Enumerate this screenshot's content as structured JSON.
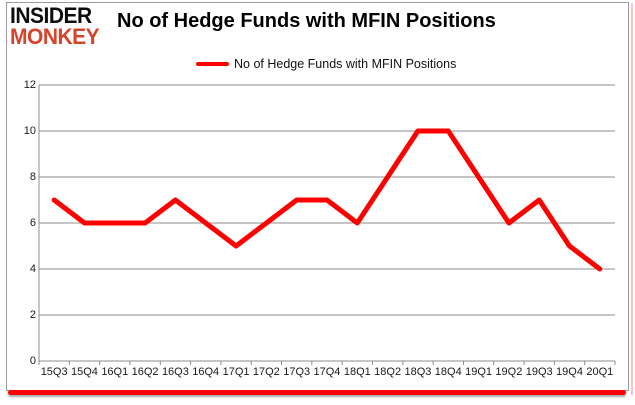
{
  "brand": {
    "line1": "INSIDER",
    "line2": "MONKEY",
    "accent_color": "#d7432b"
  },
  "header": {
    "title": "No of Hedge Funds with MFIN Positions"
  },
  "legend": {
    "label": "No of Hedge Funds with MFIN Positions",
    "swatch_color": "#fe0000"
  },
  "chart_data": {
    "type": "line",
    "title": "No of Hedge Funds with MFIN Positions",
    "legend_entries": [
      "No of Hedge Funds with MFIN Positions"
    ],
    "legend_position": "top",
    "categories": [
      "15Q3",
      "15Q4",
      "16Q1",
      "16Q2",
      "16Q3",
      "16Q4",
      "17Q1",
      "17Q2",
      "17Q3",
      "17Q4",
      "18Q1",
      "18Q2",
      "18Q3",
      "18Q4",
      "19Q1",
      "19Q2",
      "19Q3",
      "19Q4",
      "20Q1"
    ],
    "values": [
      7,
      6,
      6,
      6,
      7,
      6,
      5,
      6,
      7,
      7,
      6,
      8,
      10,
      10,
      8,
      6,
      7,
      5,
      4
    ],
    "xlabel": "",
    "ylabel": "",
    "ylim": [
      0,
      12
    ],
    "ytick_interval": 2,
    "grid": "horizontal",
    "line_color": "#fe0000",
    "gridline_color": "#8c8c8c"
  }
}
